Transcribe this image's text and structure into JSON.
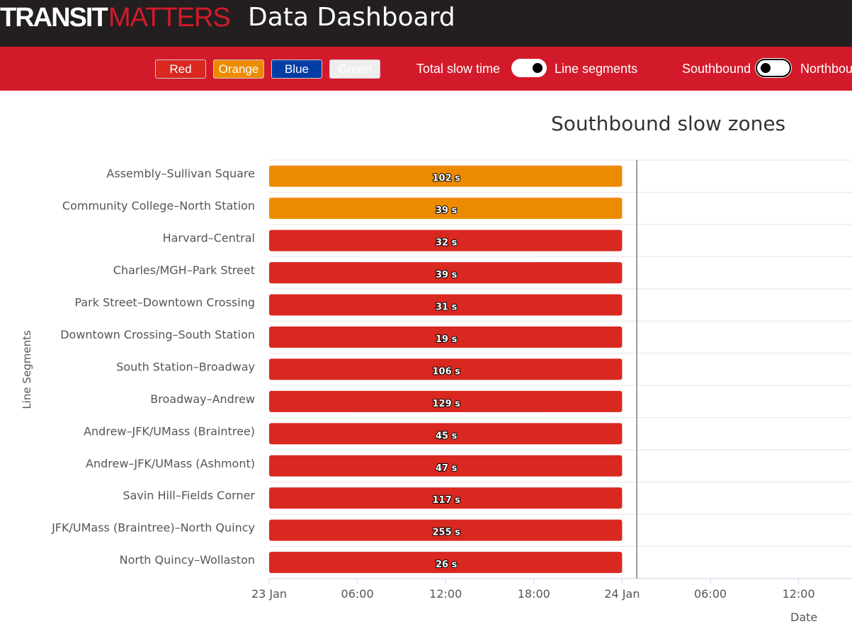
{
  "header": {
    "logo_bold": "TRANSIT",
    "logo_light": "MATTERS",
    "title": "Data Dashboard"
  },
  "controls": {
    "lines": [
      {
        "label": "Red",
        "color": "#d9281f"
      },
      {
        "label": "Orange",
        "color": "#ed8b00"
      },
      {
        "label": "Blue",
        "color": "#003da5"
      },
      {
        "label": "Green",
        "color": "#eeeeee"
      }
    ],
    "toggle1_left": "Total slow time",
    "toggle1_right": "Line segments",
    "toggle2_left": "Southbound",
    "toggle2_right": "Northbound"
  },
  "chart_data": {
    "type": "bar",
    "title": "Southbound slow zones",
    "xlabel": "Date",
    "ylabel": "Line Segments",
    "x_ticks": [
      "23 Jan",
      "06:00",
      "12:00",
      "18:00",
      "24 Jan",
      "06:00",
      "12:00"
    ],
    "x_tick_hours": [
      0,
      6,
      12,
      18,
      24,
      30,
      36
    ],
    "now_marker_hours": 25,
    "categories": [
      "Assembly–Sullivan Square",
      "Community College–North Station",
      "Harvard–Central",
      "Charles/MGH–Park Street",
      "Park Street–Downtown Crossing",
      "Downtown Crossing–South Station",
      "South Station–Broadway",
      "Broadway–Andrew",
      "Andrew–JFK/UMass (Braintree)",
      "Andrew–JFK/UMass (Ashmont)",
      "Savin Hill–Fields Corner",
      "JFK/UMass (Braintree)–North Quincy",
      "North Quincy–Wollaston"
    ],
    "lines": [
      "Orange",
      "Orange",
      "Red",
      "Red",
      "Red",
      "Red",
      "Red",
      "Red",
      "Red",
      "Red",
      "Red",
      "Red",
      "Red"
    ],
    "start_hours": [
      0,
      0,
      0,
      0,
      0,
      0,
      0,
      0,
      0,
      0,
      0,
      0,
      0
    ],
    "end_hours": [
      24,
      24,
      24,
      24,
      24,
      24,
      24,
      24,
      24,
      24,
      24,
      24,
      24
    ],
    "values": [
      102,
      39,
      32,
      39,
      31,
      19,
      106,
      129,
      45,
      47,
      117,
      255,
      26
    ],
    "labels": [
      "102 s",
      "39 s",
      "32 s",
      "39 s",
      "31 s",
      "19 s",
      "106 s",
      "129 s",
      "45 s",
      "47 s",
      "117 s",
      "255 s",
      "26 s"
    ],
    "colors": {
      "Orange": "#ed8b00",
      "Red": "#d9281f"
    }
  }
}
